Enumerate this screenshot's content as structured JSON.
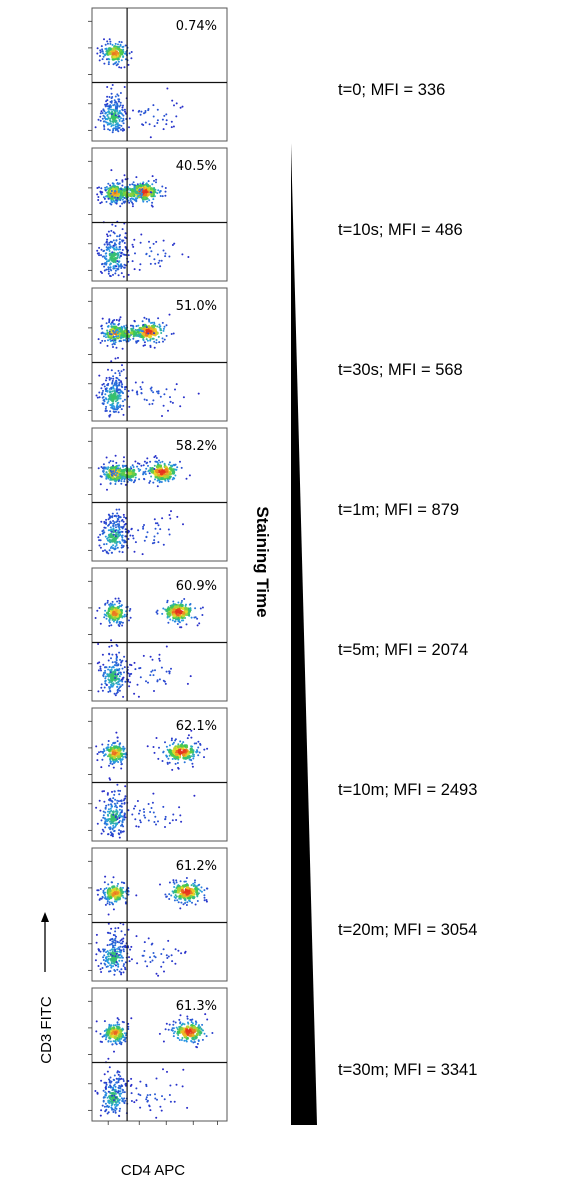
{
  "chart_data": {
    "type": "scatter",
    "xlabel": "CD4 APC",
    "ylabel": "CD3 FITC",
    "annotation": "Staining Time",
    "panels": [
      {
        "percent": "0.74%",
        "condition": "t=0; MFI = 336",
        "mfi": 336,
        "cd4_pos_center": 0.22
      },
      {
        "percent": "40.5%",
        "condition": "t=10s; MFI = 486",
        "mfi": 486,
        "cd4_pos_center": 0.38
      },
      {
        "percent": "51.0%",
        "condition": "t=30s; MFI = 568",
        "mfi": 568,
        "cd4_pos_center": 0.42
      },
      {
        "percent": "58.2%",
        "condition": "t=1m; MFI = 879",
        "mfi": 879,
        "cd4_pos_center": 0.52
      },
      {
        "percent": "60.9%",
        "condition": "t=5m; MFI = 2074",
        "mfi": 2074,
        "cd4_pos_center": 0.64
      },
      {
        "percent": "62.1%",
        "condition": "t=10m; MFI = 2493",
        "mfi": 2493,
        "cd4_pos_center": 0.66
      },
      {
        "percent": "61.2%",
        "condition": "t=20m; MFI = 3054",
        "mfi": 3054,
        "cd4_pos_center": 0.7
      },
      {
        "percent": "61.3%",
        "condition": "t=30m; MFI = 3341",
        "mfi": 3341,
        "cd4_pos_center": 0.72
      }
    ]
  }
}
